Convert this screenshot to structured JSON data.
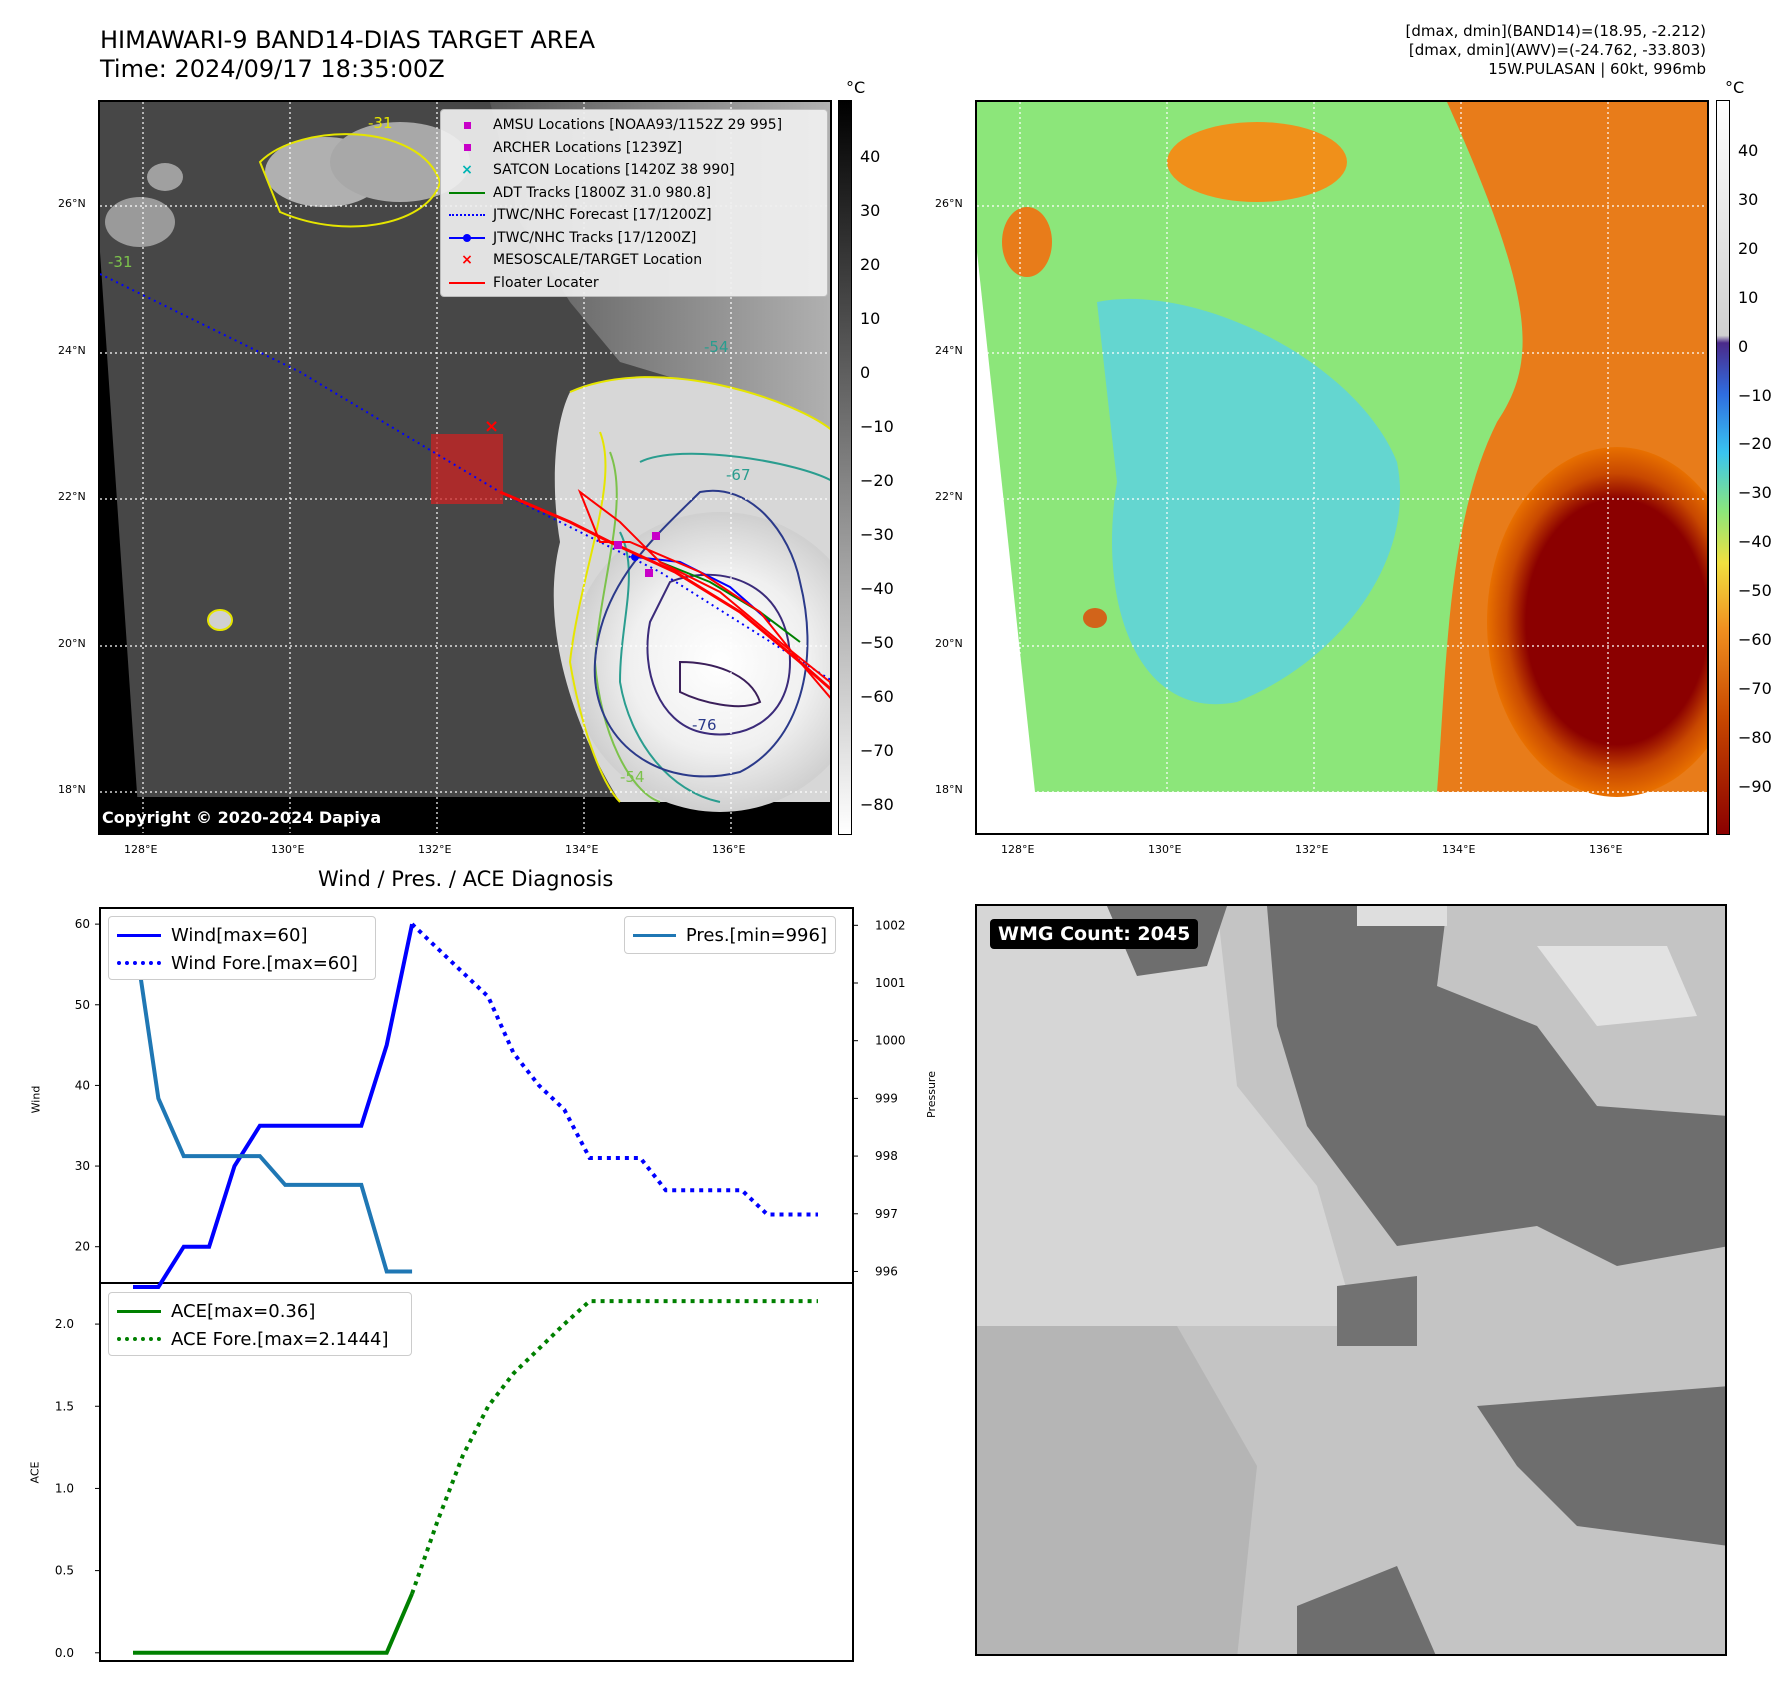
{
  "header": {
    "title_line1": "HIMAWARI-9 BAND14-DIAS TARGET AREA",
    "title_line2": "Time: 2024/09/17 18:35:00Z",
    "info_line1": "[dmax, dmin](BAND14)=(18.95, -2.212)",
    "info_line2": "[dmax, dmin](AWV)=(-24.762, -33.803)",
    "info_line3": "15W.PULASAN | 60kt, 996mb"
  },
  "map_axes": {
    "lat_ticks": [
      "26°N",
      "24°N",
      "22°N",
      "20°N",
      "18°N"
    ],
    "lon_ticks": [
      "128°E",
      "130°E",
      "132°E",
      "134°E",
      "136°E"
    ]
  },
  "ir_panel": {
    "copyright": "Copyright © 2020-2024 Dapiya",
    "contour_labels": [
      "-31",
      "-54",
      "-67",
      "-76",
      "-31",
      "-54"
    ],
    "legend": [
      {
        "label": "AMSU Locations [NOAA93/1152Z 29 995]",
        "marker": "square",
        "color": "#c800c8"
      },
      {
        "label": "ARCHER Locations [1239Z]",
        "marker": "square",
        "color": "#c800c8"
      },
      {
        "label": "SATCON Locations [1420Z 38 990]",
        "marker": "x",
        "color": "#00b4b4"
      },
      {
        "label": "ADT Tracks [1800Z 31.0 980.8]",
        "marker": "line",
        "color": "#008000"
      },
      {
        "label": "JTWC/NHC Forecast [17/1200Z]",
        "marker": "dotted",
        "color": "#0000ff"
      },
      {
        "label": "JTWC/NHC Tracks [17/1200Z]",
        "marker": "line-dot",
        "color": "#0000ff"
      },
      {
        "label": "MESOSCALE/TARGET Location",
        "marker": "x",
        "color": "#ff0000"
      },
      {
        "label": "Floater Locater",
        "marker": "line",
        "color": "#ff0000"
      }
    ],
    "colorbar": {
      "unit": "°C",
      "ticks": [
        "40",
        "30",
        "20",
        "10",
        "0",
        "−10",
        "−20",
        "−30",
        "−40",
        "−50",
        "−60",
        "−70",
        "−80"
      ]
    }
  },
  "awv_panel": {
    "colorbar": {
      "unit": "°C",
      "ticks": [
        "40",
        "30",
        "20",
        "10",
        "0",
        "−10",
        "−20",
        "−30",
        "−40",
        "−50",
        "−60",
        "−70",
        "−80",
        "−90"
      ]
    }
  },
  "wmg_panel": {
    "label": "WMG Count: 2045"
  },
  "chart_data": [
    {
      "type": "line",
      "title": "Wind / Pres. / ACE Diagnosis",
      "ylabel": "Wind",
      "ylabel_right": "Pressure",
      "ylim": [
        15.5,
        62
      ],
      "ylim_right": [
        995.8,
        1002.3
      ],
      "yticks": [
        "60",
        "50",
        "40",
        "30",
        "20"
      ],
      "yticks_right": [
        "1002",
        "1001",
        "1000",
        "999",
        "998",
        "997",
        "996"
      ],
      "series": [
        {
          "name": "Wind[max=60]",
          "color": "#0000ff",
          "style": "solid",
          "x": [
            0,
            1,
            2,
            3,
            4,
            5,
            6,
            7,
            8,
            9,
            10,
            11
          ],
          "values": [
            15,
            15,
            20,
            20,
            30,
            35,
            35,
            35,
            35,
            35,
            45,
            60
          ]
        },
        {
          "name": "Wind Fore.[max=60]",
          "color": "#0000ff",
          "style": "dotted",
          "x": [
            11,
            12,
            13,
            14,
            15,
            16,
            17,
            18,
            19,
            20,
            21,
            22,
            23,
            24,
            25,
            26,
            27
          ],
          "values": [
            60,
            57,
            54,
            51,
            44,
            40,
            37,
            31,
            31,
            31,
            27,
            27,
            27,
            27,
            24,
            24,
            24
          ]
        },
        {
          "name": "Pres.[min=996]",
          "color": "#1f77b4",
          "style": "solid",
          "axis": "right",
          "x": [
            0,
            1,
            2,
            3,
            4,
            5,
            6,
            7,
            8,
            9,
            10,
            11
          ],
          "values": [
            1002,
            999,
            998,
            998,
            998,
            998,
            997.5,
            997.5,
            997.5,
            997.5,
            996,
            996
          ]
        }
      ]
    },
    {
      "type": "line",
      "ylabel": "ACE",
      "ylim": [
        -0.05,
        2.25
      ],
      "yticks": [
        "2.0",
        "1.5",
        "1.0",
        "0.5",
        "0.0"
      ],
      "series": [
        {
          "name": "ACE[max=0.36]",
          "color": "#008000",
          "style": "solid",
          "x": [
            0,
            1,
            2,
            3,
            4,
            5,
            6,
            7,
            8,
            9,
            10,
            11
          ],
          "values": [
            0,
            0,
            0,
            0,
            0,
            0,
            0,
            0,
            0,
            0,
            0,
            0.36
          ]
        },
        {
          "name": "ACE Fore.[max=2.1444]",
          "color": "#008000",
          "style": "dotted",
          "x": [
            11,
            12,
            13,
            14,
            15,
            16,
            17,
            18,
            19,
            20,
            21,
            22,
            23,
            24,
            25,
            26,
            27
          ],
          "values": [
            0.36,
            0.8,
            1.2,
            1.5,
            1.7,
            1.85,
            2.0,
            2.14,
            2.14,
            2.14,
            2.14,
            2.14,
            2.14,
            2.14,
            2.14,
            2.14,
            2.14
          ]
        }
      ]
    }
  ]
}
